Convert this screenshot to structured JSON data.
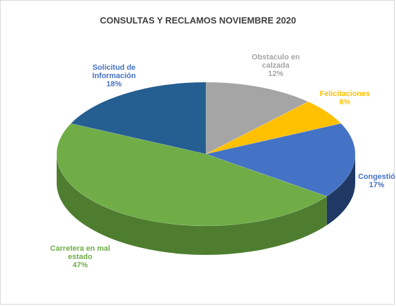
{
  "chart_data": {
    "type": "pie",
    "title": "CONSULTAS Y RECLAMOS NOVIEMBRE 2020",
    "slices": [
      {
        "name_lines": [
          "Obstaculo en",
          "calzada"
        ],
        "pct_text": "12%",
        "value": 12,
        "color": "#a5a5a5",
        "side": "#7e7e7e"
      },
      {
        "name_lines": [
          "Felicitaciones"
        ],
        "pct_text": "6%",
        "value": 6,
        "color": "#ffc000",
        "side": "#c79600"
      },
      {
        "name_lines": [
          "Congestió"
        ],
        "pct_text": "17%",
        "value": 17,
        "color": "#4472c4",
        "side": "#203864"
      },
      {
        "name_lines": [
          "Carretera en mal",
          "estado"
        ],
        "pct_text": "47%",
        "value": 47,
        "color": "#70ad47",
        "side": "#4e7d30"
      },
      {
        "name_lines": [
          "Solicitud de",
          "Información"
        ],
        "pct_text": "18%",
        "value": 18,
        "color": "#255e91",
        "side": "#173a5a"
      }
    ],
    "label_colors": [
      "#a5a5a5",
      "#ffc000",
      "#4472c4",
      "#70ad47",
      "#4472c4"
    ],
    "legend": "none",
    "grid": false
  }
}
